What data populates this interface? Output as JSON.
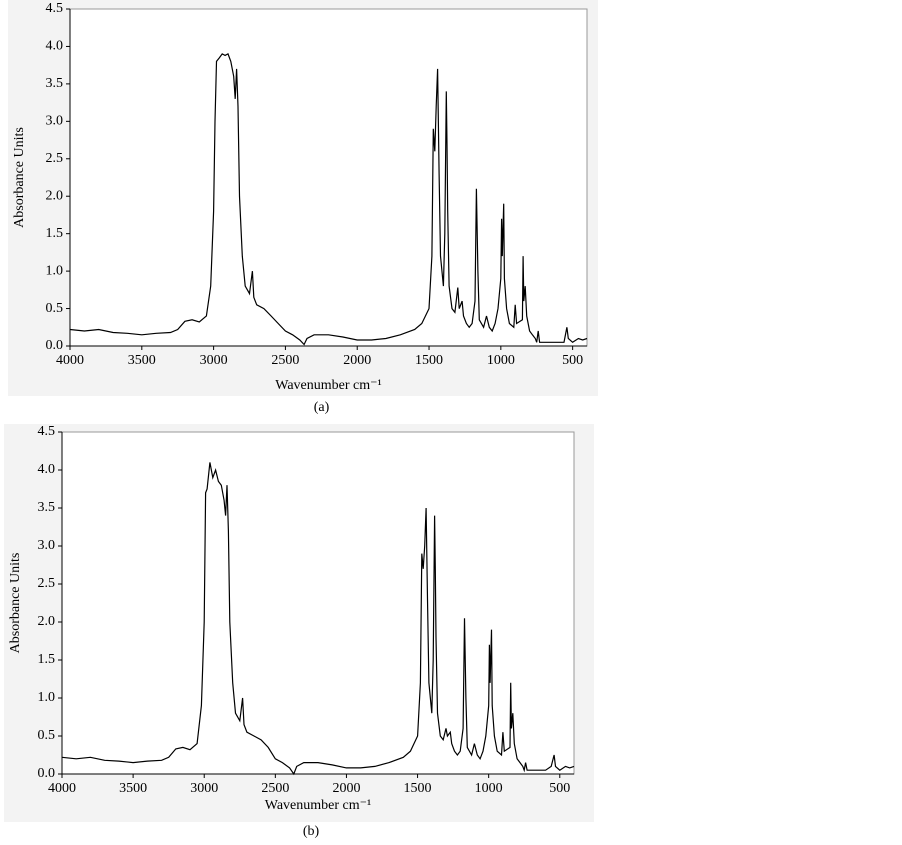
{
  "chart_data": [
    {
      "type": "line",
      "caption": "(a)",
      "xlabel": "Wavenumber cm⁻¹",
      "ylabel": "Absorbance Units",
      "color": "#000000",
      "xlim": [
        4000,
        400
      ],
      "ylim": [
        0,
        4.5
      ],
      "xticks": [
        4000,
        3500,
        3000,
        2500,
        2000,
        1500,
        1000,
        500
      ],
      "yticks": [
        {
          "value": 0,
          "label": "0.0"
        },
        {
          "value": 0.5,
          "label": "0.5"
        },
        {
          "value": 1,
          "label": "1.0"
        },
        {
          "value": 1.5,
          "label": "1.5"
        },
        {
          "value": 2,
          "label": "2.0"
        },
        {
          "value": 2.5,
          "label": "2.5"
        },
        {
          "value": 3,
          "label": "3.0"
        },
        {
          "value": 3.5,
          "label": "3.5"
        },
        {
          "value": 4,
          "label": "4.0"
        },
        {
          "value": 4.5,
          "label": "4.5"
        }
      ],
      "x": [
        4000,
        3900,
        3800,
        3700,
        3600,
        3500,
        3400,
        3300,
        3250,
        3200,
        3150,
        3100,
        3050,
        3020,
        3000,
        2990,
        2980,
        2960,
        2940,
        2920,
        2900,
        2880,
        2860,
        2850,
        2840,
        2830,
        2820,
        2800,
        2780,
        2750,
        2730,
        2720,
        2700,
        2650,
        2600,
        2550,
        2500,
        2450,
        2400,
        2370,
        2350,
        2300,
        2200,
        2100,
        2000,
        1900,
        1800,
        1700,
        1600,
        1550,
        1500,
        1480,
        1470,
        1460,
        1450,
        1440,
        1430,
        1420,
        1400,
        1390,
        1380,
        1375,
        1370,
        1360,
        1340,
        1320,
        1300,
        1290,
        1270,
        1260,
        1240,
        1220,
        1200,
        1180,
        1170,
        1160,
        1150,
        1120,
        1100,
        1080,
        1060,
        1040,
        1020,
        1000,
        995,
        990,
        980,
        975,
        960,
        940,
        910,
        900,
        890,
        850,
        845,
        840,
        830,
        820,
        800,
        780,
        760,
        750,
        740,
        730,
        700,
        650,
        600,
        560,
        540,
        530,
        500,
        460,
        430,
        400
      ],
      "values": [
        0.22,
        0.2,
        0.22,
        0.18,
        0.17,
        0.15,
        0.17,
        0.18,
        0.22,
        0.33,
        0.35,
        0.32,
        0.4,
        0.8,
        1.8,
        3.0,
        3.8,
        3.85,
        3.9,
        3.88,
        3.9,
        3.8,
        3.6,
        3.3,
        3.7,
        3.2,
        2.0,
        1.2,
        0.8,
        0.7,
        1.0,
        0.65,
        0.55,
        0.5,
        0.4,
        0.3,
        0.2,
        0.15,
        0.08,
        0.02,
        0.1,
        0.15,
        0.15,
        0.12,
        0.08,
        0.08,
        0.1,
        0.15,
        0.22,
        0.3,
        0.5,
        1.2,
        2.9,
        2.6,
        3.2,
        3.7,
        2.3,
        1.2,
        0.8,
        1.5,
        3.4,
        2.7,
        1.8,
        0.8,
        0.5,
        0.45,
        0.78,
        0.5,
        0.6,
        0.4,
        0.3,
        0.25,
        0.3,
        0.6,
        2.1,
        1.0,
        0.35,
        0.25,
        0.4,
        0.25,
        0.2,
        0.3,
        0.5,
        0.9,
        1.7,
        1.2,
        1.9,
        0.9,
        0.5,
        0.3,
        0.25,
        0.55,
        0.3,
        0.35,
        1.2,
        0.6,
        0.8,
        0.4,
        0.2,
        0.15,
        0.1,
        0.05,
        0.2,
        0.05,
        0.05,
        0.05,
        0.05,
        0.05,
        0.25,
        0.1,
        0.05,
        0.1,
        0.08,
        0.1
      ]
    },
    {
      "type": "line",
      "caption": "(b)",
      "xlabel": "Wavenumber cm⁻¹",
      "ylabel": "Absorbance Units",
      "color": "#000000",
      "xlim": [
        4000,
        400
      ],
      "ylim": [
        0,
        4.5
      ],
      "xticks": [
        4000,
        3500,
        3000,
        2500,
        2000,
        1500,
        1000,
        500
      ],
      "yticks": [
        {
          "value": 0,
          "label": "0.0"
        },
        {
          "value": 0.5,
          "label": "0.5"
        },
        {
          "value": 1,
          "label": "1.0"
        },
        {
          "value": 1.5,
          "label": "1.5"
        },
        {
          "value": 2,
          "label": "2.0"
        },
        {
          "value": 2.5,
          "label": "2.5"
        },
        {
          "value": 3,
          "label": "3.0"
        },
        {
          "value": 3.5,
          "label": "3.5"
        },
        {
          "value": 4,
          "label": "4.0"
        },
        {
          "value": 4.5,
          "label": "4.5"
        }
      ],
      "x": [
        4000,
        3900,
        3800,
        3700,
        3600,
        3500,
        3400,
        3300,
        3250,
        3200,
        3150,
        3100,
        3050,
        3020,
        3000,
        2990,
        2980,
        2960,
        2940,
        2920,
        2900,
        2880,
        2860,
        2850,
        2840,
        2830,
        2820,
        2800,
        2780,
        2750,
        2730,
        2720,
        2700,
        2650,
        2600,
        2550,
        2500,
        2450,
        2400,
        2370,
        2350,
        2300,
        2200,
        2100,
        2000,
        1900,
        1800,
        1700,
        1600,
        1550,
        1500,
        1480,
        1470,
        1460,
        1450,
        1440,
        1430,
        1420,
        1400,
        1390,
        1380,
        1375,
        1370,
        1360,
        1340,
        1320,
        1300,
        1290,
        1270,
        1260,
        1240,
        1220,
        1200,
        1180,
        1170,
        1160,
        1150,
        1120,
        1100,
        1080,
        1060,
        1040,
        1020,
        1000,
        995,
        990,
        980,
        975,
        960,
        940,
        910,
        900,
        890,
        850,
        845,
        840,
        830,
        820,
        800,
        780,
        760,
        750,
        740,
        730,
        700,
        650,
        600,
        560,
        540,
        530,
        500,
        460,
        430,
        400
      ],
      "values": [
        0.22,
        0.2,
        0.22,
        0.18,
        0.17,
        0.15,
        0.17,
        0.18,
        0.22,
        0.33,
        0.35,
        0.32,
        0.4,
        0.9,
        2.0,
        3.7,
        3.75,
        4.1,
        3.9,
        4.0,
        3.85,
        3.8,
        3.6,
        3.4,
        3.8,
        3.2,
        2.0,
        1.2,
        0.8,
        0.7,
        1.0,
        0.65,
        0.55,
        0.5,
        0.45,
        0.35,
        0.2,
        0.15,
        0.08,
        0.0,
        0.1,
        0.15,
        0.15,
        0.12,
        0.08,
        0.08,
        0.1,
        0.15,
        0.22,
        0.3,
        0.5,
        1.2,
        2.9,
        2.7,
        3.0,
        3.5,
        2.3,
        1.2,
        0.8,
        1.5,
        3.4,
        2.7,
        1.8,
        0.8,
        0.5,
        0.45,
        0.6,
        0.5,
        0.55,
        0.4,
        0.3,
        0.25,
        0.3,
        0.6,
        2.05,
        1.0,
        0.35,
        0.25,
        0.4,
        0.25,
        0.2,
        0.3,
        0.5,
        0.9,
        1.7,
        1.2,
        1.9,
        0.9,
        0.5,
        0.3,
        0.25,
        0.55,
        0.3,
        0.35,
        1.2,
        0.6,
        0.8,
        0.4,
        0.2,
        0.15,
        0.1,
        0.05,
        0.15,
        0.05,
        0.05,
        0.05,
        0.05,
        0.1,
        0.25,
        0.1,
        0.05,
        0.1,
        0.08,
        0.1
      ]
    }
  ]
}
